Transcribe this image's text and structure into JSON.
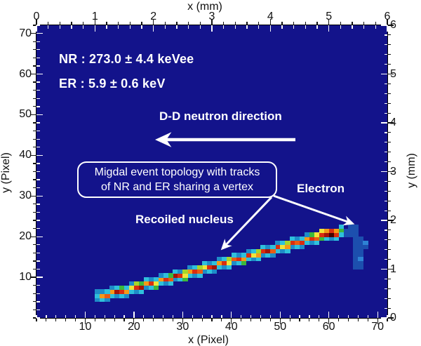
{
  "figure": {
    "background": "#ffffff",
    "plot_background": "#13138B",
    "frame_color": "#000000"
  },
  "chart_data": {
    "type": "heatmap",
    "description": "Migdal event candidate: 2D CCD image with a nuclear recoil track and an electron recoil sharing a vertex",
    "grid": {
      "nx": 72,
      "ny": 72
    },
    "axes": {
      "bottom": {
        "title": "x (Pixel)",
        "lim": [
          0,
          72
        ],
        "majors": [
          10,
          20,
          30,
          40,
          50,
          60,
          70
        ],
        "labels": [
          "10",
          "20",
          "30",
          "40",
          "50",
          "60",
          "70"
        ],
        "minor_step": 2
      },
      "top": {
        "title": "x (mm)",
        "lim": [
          0,
          6
        ],
        "majors": [
          0,
          1,
          2,
          3,
          4,
          5,
          6
        ],
        "labels": [
          "0",
          "1",
          "2",
          "3",
          "4",
          "5",
          "6"
        ],
        "minor_step": 0.2
      },
      "left": {
        "title": "y (Pixel)",
        "lim": [
          0,
          72
        ],
        "majors": [
          10,
          20,
          30,
          40,
          50,
          60,
          70
        ],
        "labels": [
          "10",
          "20",
          "30",
          "40",
          "50",
          "60",
          "70"
        ],
        "minor_step": 2
      },
      "right": {
        "title": "y (mm)",
        "lim": [
          0,
          6
        ],
        "majors": [
          0,
          1,
          2,
          3,
          4,
          5,
          6
        ],
        "labels": [
          "0",
          "1",
          "2",
          "3",
          "4",
          "5",
          "6"
        ],
        "minor_step": 0.2
      }
    },
    "annotations": {
      "nr_energy": "NR : 273.0 ± 4.4 keVee",
      "er_energy": "ER : 5.9 ± 0.6 keV",
      "neutron_direction": "D-D neutron direction",
      "box_line1": "Migdal event topology with tracks",
      "box_line2": "of NR and ER sharing a vertex",
      "electron_label": "Electron",
      "recoil_label": "Recoiled nucleus"
    },
    "palette": {
      "t": "#1E8CC8",
      "c": "#2FC0DC",
      "g": "#3CB83C",
      "yg": "#A6D62A",
      "y": "#F0E43A",
      "o": "#F49A18",
      "ro": "#E85C14",
      "r": "#D92E10",
      "dr": "#A31408",
      "k": "#470300",
      "e": "#1C4FAE",
      "e2": "#2E82D4"
    },
    "cells": [
      [
        12,
        4,
        "t"
      ],
      [
        13,
        4,
        "c"
      ],
      [
        14,
        4,
        "t"
      ],
      [
        15,
        5,
        "c"
      ],
      [
        16,
        5,
        "t"
      ],
      [
        17,
        5,
        "c"
      ],
      [
        18,
        5,
        "t"
      ],
      [
        19,
        6,
        "c"
      ],
      [
        20,
        6,
        "t"
      ],
      [
        21,
        6,
        "c"
      ],
      [
        22,
        7,
        "t"
      ],
      [
        23,
        7,
        "c"
      ],
      [
        24,
        7,
        "g"
      ],
      [
        25,
        8,
        "c"
      ],
      [
        26,
        8,
        "t"
      ],
      [
        27,
        8,
        "c"
      ],
      [
        28,
        9,
        "t"
      ],
      [
        29,
        9,
        "c"
      ],
      [
        30,
        9,
        "g"
      ],
      [
        31,
        10,
        "c"
      ],
      [
        32,
        10,
        "t"
      ],
      [
        33,
        10,
        "c"
      ],
      [
        34,
        11,
        "t"
      ],
      [
        35,
        11,
        "c"
      ],
      [
        36,
        11,
        "t"
      ],
      [
        37,
        12,
        "c"
      ],
      [
        38,
        12,
        "t"
      ],
      [
        39,
        12,
        "c"
      ],
      [
        40,
        13,
        "t"
      ],
      [
        41,
        13,
        "c"
      ],
      [
        42,
        13,
        "g"
      ],
      [
        43,
        14,
        "c"
      ],
      [
        44,
        14,
        "t"
      ],
      [
        45,
        14,
        "c"
      ],
      [
        46,
        15,
        "t"
      ],
      [
        47,
        15,
        "c"
      ],
      [
        48,
        15,
        "t"
      ],
      [
        49,
        16,
        "c"
      ],
      [
        50,
        16,
        "t"
      ],
      [
        51,
        16,
        "c"
      ],
      [
        52,
        17,
        "t"
      ],
      [
        53,
        17,
        "c"
      ],
      [
        54,
        17,
        "t"
      ],
      [
        55,
        18,
        "c"
      ],
      [
        56,
        18,
        "t"
      ],
      [
        57,
        18,
        "c"
      ],
      [
        58,
        19,
        "g"
      ],
      [
        59,
        19,
        "c"
      ],
      [
        60,
        19,
        "t"
      ],
      [
        61,
        19,
        "c"
      ],
      [
        12,
        5,
        "c"
      ],
      [
        13,
        5,
        "o"
      ],
      [
        14,
        5,
        "ro"
      ],
      [
        15,
        6,
        "o"
      ],
      [
        16,
        6,
        "dr"
      ],
      [
        17,
        6,
        "r"
      ],
      [
        18,
        6,
        "o"
      ],
      [
        19,
        7,
        "y"
      ],
      [
        20,
        7,
        "r"
      ],
      [
        21,
        7,
        "dr"
      ],
      [
        22,
        8,
        "o"
      ],
      [
        23,
        8,
        "r"
      ],
      [
        24,
        8,
        "y"
      ],
      [
        25,
        9,
        "o"
      ],
      [
        26,
        9,
        "r"
      ],
      [
        27,
        9,
        "ro"
      ],
      [
        28,
        10,
        "dr"
      ],
      [
        29,
        10,
        "r"
      ],
      [
        30,
        10,
        "y"
      ],
      [
        31,
        11,
        "o"
      ],
      [
        32,
        11,
        "r"
      ],
      [
        33,
        11,
        "ro"
      ],
      [
        34,
        12,
        "y"
      ],
      [
        35,
        12,
        "r"
      ],
      [
        36,
        12,
        "dr"
      ],
      [
        37,
        13,
        "o"
      ],
      [
        38,
        13,
        "r"
      ],
      [
        39,
        13,
        "y"
      ],
      [
        40,
        14,
        "ro"
      ],
      [
        41,
        14,
        "r"
      ],
      [
        42,
        14,
        "o"
      ],
      [
        43,
        15,
        "r"
      ],
      [
        44,
        15,
        "y"
      ],
      [
        45,
        15,
        "o"
      ],
      [
        46,
        16,
        "r"
      ],
      [
        47,
        16,
        "dr"
      ],
      [
        48,
        16,
        "ro"
      ],
      [
        49,
        17,
        "r"
      ],
      [
        50,
        17,
        "y"
      ],
      [
        51,
        17,
        "o"
      ],
      [
        52,
        18,
        "r"
      ],
      [
        53,
        18,
        "ro"
      ],
      [
        54,
        18,
        "r"
      ],
      [
        55,
        19,
        "o"
      ],
      [
        56,
        19,
        "r"
      ],
      [
        57,
        19,
        "ro"
      ],
      [
        58,
        20,
        "r"
      ],
      [
        59,
        20,
        "dr"
      ],
      [
        60,
        20,
        "k"
      ],
      [
        61,
        20,
        "r"
      ],
      [
        62,
        21,
        "g"
      ],
      [
        12,
        6,
        "t"
      ],
      [
        13,
        6,
        "t"
      ],
      [
        14,
        6,
        "c"
      ],
      [
        15,
        7,
        "t"
      ],
      [
        16,
        7,
        "c"
      ],
      [
        17,
        7,
        "g"
      ],
      [
        18,
        7,
        "c"
      ],
      [
        19,
        8,
        "t"
      ],
      [
        20,
        8,
        "yg"
      ],
      [
        21,
        8,
        "g"
      ],
      [
        22,
        9,
        "c"
      ],
      [
        23,
        9,
        "t"
      ],
      [
        24,
        9,
        "c"
      ],
      [
        25,
        10,
        "t"
      ],
      [
        26,
        10,
        "c"
      ],
      [
        27,
        10,
        "g"
      ],
      [
        28,
        11,
        "c"
      ],
      [
        29,
        11,
        "t"
      ],
      [
        30,
        11,
        "yg"
      ],
      [
        31,
        12,
        "t"
      ],
      [
        32,
        12,
        "c"
      ],
      [
        33,
        12,
        "yg"
      ],
      [
        34,
        13,
        "c"
      ],
      [
        35,
        13,
        "t"
      ],
      [
        36,
        13,
        "c"
      ],
      [
        37,
        14,
        "t"
      ],
      [
        38,
        14,
        "c"
      ],
      [
        39,
        14,
        "yg"
      ],
      [
        40,
        15,
        "c"
      ],
      [
        41,
        15,
        "t"
      ],
      [
        42,
        15,
        "c"
      ],
      [
        43,
        16,
        "t"
      ],
      [
        44,
        16,
        "c"
      ],
      [
        45,
        16,
        "yg"
      ],
      [
        46,
        17,
        "c"
      ],
      [
        47,
        17,
        "t"
      ],
      [
        48,
        17,
        "c"
      ],
      [
        49,
        18,
        "t"
      ],
      [
        50,
        18,
        "c"
      ],
      [
        51,
        18,
        "yg"
      ],
      [
        52,
        19,
        "c"
      ],
      [
        53,
        19,
        "t"
      ],
      [
        54,
        19,
        "c"
      ],
      [
        55,
        20,
        "t"
      ],
      [
        56,
        20,
        "g"
      ],
      [
        57,
        20,
        "y"
      ],
      [
        58,
        21,
        "y"
      ],
      [
        59,
        21,
        "o"
      ],
      [
        60,
        21,
        "r"
      ],
      [
        61,
        21,
        "o"
      ],
      [
        62,
        20,
        "c"
      ],
      [
        62,
        22,
        "c"
      ],
      [
        63,
        21,
        "e"
      ],
      [
        63,
        20,
        "e"
      ],
      [
        64,
        22,
        "e"
      ],
      [
        65,
        22,
        "e"
      ],
      [
        64,
        21,
        "e"
      ],
      [
        65,
        21,
        "e"
      ],
      [
        64,
        20,
        "e"
      ],
      [
        65,
        20,
        "e"
      ],
      [
        65,
        19,
        "e"
      ],
      [
        66,
        19,
        "e"
      ],
      [
        65,
        18,
        "e"
      ],
      [
        66,
        18,
        "e"
      ],
      [
        67,
        18,
        "e2"
      ],
      [
        65,
        17,
        "e"
      ],
      [
        66,
        17,
        "e"
      ],
      [
        67,
        17,
        "e"
      ],
      [
        65,
        16,
        "e"
      ],
      [
        66,
        16,
        "e"
      ],
      [
        65,
        15,
        "e"
      ],
      [
        66,
        15,
        "e"
      ],
      [
        65,
        14,
        "e"
      ],
      [
        66,
        14,
        "e2"
      ],
      [
        65,
        13,
        "e"
      ],
      [
        66,
        13,
        "e"
      ],
      [
        65,
        12,
        "e"
      ],
      [
        66,
        12,
        "e"
      ]
    ]
  }
}
